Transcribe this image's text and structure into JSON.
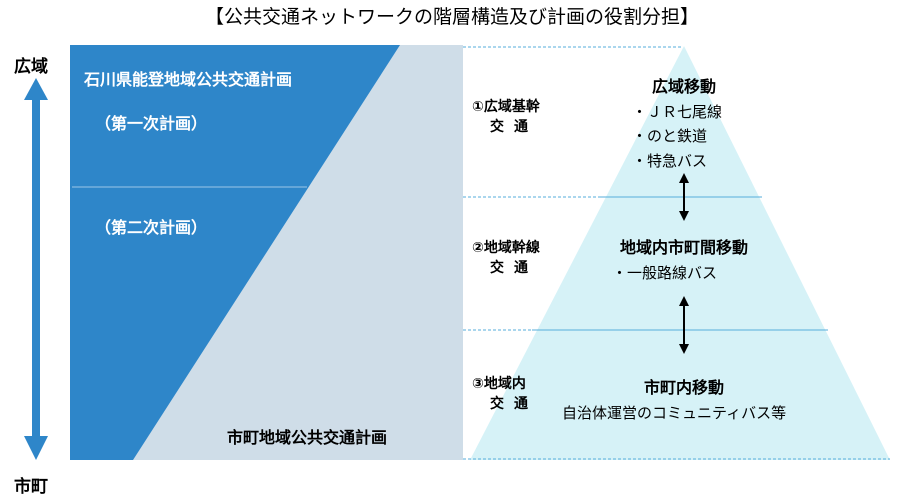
{
  "title": "【公共交通ネットワークの階層構造及び計画の役割分担】",
  "axis": {
    "top": "広域",
    "bottom": "市町"
  },
  "plans": {
    "prefectural": "石川県能登地域公共交通計画",
    "phase1": "（第一次計画）",
    "phase2": "（第二次計画）",
    "municipal": "市町地域公共交通計画"
  },
  "tiers": [
    {
      "label_line1": "①広域基幹",
      "label_line2": "交通",
      "heading": "広域移動",
      "items": [
        "・ＪＲ七尾線",
        "・のと鉄道",
        "・特急バス"
      ]
    },
    {
      "label_line1": "②地域幹線",
      "label_line2": "交通",
      "heading": "地域内市町間移動",
      "items": [
        "・一般路線バス"
      ]
    },
    {
      "label_line1": "③地域内",
      "label_line2": "交通",
      "heading": "市町内移動",
      "items": [
        "自治体運営のコミュニティバス等"
      ]
    }
  ],
  "colors": {
    "blue": "#2e86c9",
    "grey": "#cfdde8",
    "pyramid": "#d6f2f7",
    "arrow": "#2e86c9"
  }
}
